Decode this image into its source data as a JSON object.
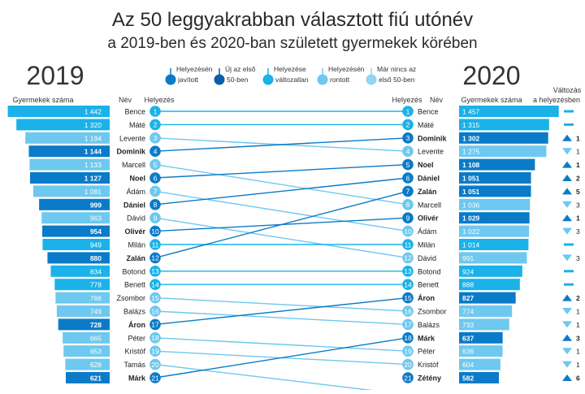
{
  "title": "Az 50 leggyakrabban választott fiú utónév",
  "subtitle": "a 2019-ben és 2020-ban született gyermekek körében",
  "year_left": "2019",
  "year_right": "2020",
  "header_left_count": "Gyermekek száma",
  "header_left_name": "Név",
  "header_left_rank": "Helyezés",
  "header_right_rank": "Helyezés",
  "header_right_name": "Név",
  "header_right_count": "Gyermekek száma",
  "header_change": "Változás",
  "header_change_sub": "a helyezésben",
  "colors": {
    "improved": "#0a7bc8",
    "new": "#0a5fa8",
    "unchanged": "#1ab2e8",
    "worse": "#6ec8ef",
    "dropped": "#8fd6f4"
  },
  "legend": [
    {
      "key": "improved",
      "label1": "Helyezésén",
      "label2": "javított"
    },
    {
      "key": "new",
      "label1": "Új az első",
      "label2": "50-ben"
    },
    {
      "key": "unchanged",
      "label1": "Helyezése",
      "label2": "változatlan"
    },
    {
      "key": "worse",
      "label1": "Helyezésén",
      "label2": "rontott"
    },
    {
      "key": "dropped",
      "label1": "Már nincs az",
      "label2": "első 50-ben"
    }
  ],
  "chart_data": {
    "type": "table",
    "rows_2019": [
      {
        "rank": 1,
        "name": "Bence",
        "count": "1 442",
        "value": 1442,
        "status": "unchanged",
        "rank_2020": 1
      },
      {
        "rank": 2,
        "name": "Máté",
        "count": "1 320",
        "value": 1320,
        "status": "unchanged",
        "rank_2020": 2
      },
      {
        "rank": 3,
        "name": "Levente",
        "count": "1 194",
        "value": 1194,
        "status": "worse",
        "rank_2020": 4
      },
      {
        "rank": 4,
        "name": "Dominik",
        "count": "1 144",
        "value": 1144,
        "status": "improved",
        "rank_2020": 3
      },
      {
        "rank": 5,
        "name": "Marcell",
        "count": "1 133",
        "value": 1133,
        "status": "worse",
        "rank_2020": 8
      },
      {
        "rank": 6,
        "name": "Noel",
        "count": "1 127",
        "value": 1127,
        "status": "improved",
        "rank_2020": 5
      },
      {
        "rank": 7,
        "name": "Ádám",
        "count": "1 081",
        "value": 1081,
        "status": "worse",
        "rank_2020": 10
      },
      {
        "rank": 8,
        "name": "Dániel",
        "count": "999",
        "value": 999,
        "status": "improved",
        "rank_2020": 6
      },
      {
        "rank": 9,
        "name": "Dávid",
        "count": "963",
        "value": 963,
        "status": "worse",
        "rank_2020": 12
      },
      {
        "rank": 10,
        "name": "Olivér",
        "count": "954",
        "value": 954,
        "status": "improved",
        "rank_2020": 9
      },
      {
        "rank": 11,
        "name": "Milán",
        "count": "949",
        "value": 949,
        "status": "unchanged",
        "rank_2020": 11
      },
      {
        "rank": 12,
        "name": "Zalán",
        "count": "880",
        "value": 880,
        "status": "improved",
        "rank_2020": 7
      },
      {
        "rank": 13,
        "name": "Botond",
        "count": "834",
        "value": 834,
        "status": "unchanged",
        "rank_2020": 13
      },
      {
        "rank": 14,
        "name": "Benett",
        "count": "778",
        "value": 778,
        "status": "unchanged",
        "rank_2020": 14
      },
      {
        "rank": 15,
        "name": "Zsombor",
        "count": "766",
        "value": 766,
        "status": "worse",
        "rank_2020": 16
      },
      {
        "rank": 16,
        "name": "Balázs",
        "count": "749",
        "value": 749,
        "status": "worse",
        "rank_2020": 17
      },
      {
        "rank": 17,
        "name": "Áron",
        "count": "728",
        "value": 728,
        "status": "improved",
        "rank_2020": 15
      },
      {
        "rank": 18,
        "name": "Péter",
        "count": "665",
        "value": 665,
        "status": "worse",
        "rank_2020": 19
      },
      {
        "rank": 19,
        "name": "Kristóf",
        "count": "653",
        "value": 653,
        "status": "worse",
        "rank_2020": 20
      },
      {
        "rank": 20,
        "name": "Tamás",
        "count": "628",
        "value": 628,
        "status": "worse",
        "rank_2020": null
      },
      {
        "rank": 21,
        "name": "Márk",
        "count": "621",
        "value": 621,
        "status": "improved",
        "rank_2020": 18
      }
    ],
    "rows_2020": [
      {
        "rank": 1,
        "name": "Bence",
        "count": "1 457",
        "value": 1457,
        "status": "unchanged",
        "change": "",
        "dir": "same"
      },
      {
        "rank": 2,
        "name": "Máté",
        "count": "1 315",
        "value": 1315,
        "status": "unchanged",
        "change": "",
        "dir": "same"
      },
      {
        "rank": 3,
        "name": "Dominik",
        "count": "1 302",
        "value": 1302,
        "status": "improved",
        "change": "1",
        "dir": "up"
      },
      {
        "rank": 4,
        "name": "Levente",
        "count": "1 275",
        "value": 1275,
        "status": "worse",
        "change": "1",
        "dir": "down"
      },
      {
        "rank": 5,
        "name": "Noel",
        "count": "1 108",
        "value": 1108,
        "status": "improved",
        "change": "1",
        "dir": "up"
      },
      {
        "rank": 6,
        "name": "Dániel",
        "count": "1 051",
        "value": 1051,
        "status": "improved",
        "change": "2",
        "dir": "up"
      },
      {
        "rank": 7,
        "name": "Zalán",
        "count": "1 051",
        "value": 1051,
        "status": "improved",
        "change": "5",
        "dir": "up"
      },
      {
        "rank": 8,
        "name": "Marcell",
        "count": "1 036",
        "value": 1036,
        "status": "worse",
        "change": "3",
        "dir": "down"
      },
      {
        "rank": 9,
        "name": "Olivér",
        "count": "1 029",
        "value": 1029,
        "status": "improved",
        "change": "1",
        "dir": "up"
      },
      {
        "rank": 10,
        "name": "Ádám",
        "count": "1 022",
        "value": 1022,
        "status": "worse",
        "change": "3",
        "dir": "down"
      },
      {
        "rank": 11,
        "name": "Milán",
        "count": "1 014",
        "value": 1014,
        "status": "unchanged",
        "change": "",
        "dir": "same"
      },
      {
        "rank": 12,
        "name": "Dávid",
        "count": "991",
        "value": 991,
        "status": "worse",
        "change": "3",
        "dir": "down"
      },
      {
        "rank": 13,
        "name": "Botond",
        "count": "924",
        "value": 924,
        "status": "unchanged",
        "change": "",
        "dir": "same"
      },
      {
        "rank": 14,
        "name": "Benett",
        "count": "888",
        "value": 888,
        "status": "unchanged",
        "change": "",
        "dir": "same"
      },
      {
        "rank": 15,
        "name": "Áron",
        "count": "827",
        "value": 827,
        "status": "improved",
        "change": "2",
        "dir": "up"
      },
      {
        "rank": 16,
        "name": "Zsombor",
        "count": "774",
        "value": 774,
        "status": "worse",
        "change": "1",
        "dir": "down"
      },
      {
        "rank": 17,
        "name": "Balázs",
        "count": "733",
        "value": 733,
        "status": "worse",
        "change": "1",
        "dir": "down"
      },
      {
        "rank": 18,
        "name": "Márk",
        "count": "637",
        "value": 637,
        "status": "improved",
        "change": "3",
        "dir": "up"
      },
      {
        "rank": 19,
        "name": "Péter",
        "count": "636",
        "value": 636,
        "status": "worse",
        "change": "1",
        "dir": "down"
      },
      {
        "rank": 20,
        "name": "Kristóf",
        "count": "604",
        "value": 604,
        "status": "worse",
        "change": "1",
        "dir": "down"
      },
      {
        "rank": 21,
        "name": "Zétény",
        "count": "582",
        "value": 582,
        "status": "improved",
        "change": "6",
        "dir": "up"
      }
    ]
  }
}
